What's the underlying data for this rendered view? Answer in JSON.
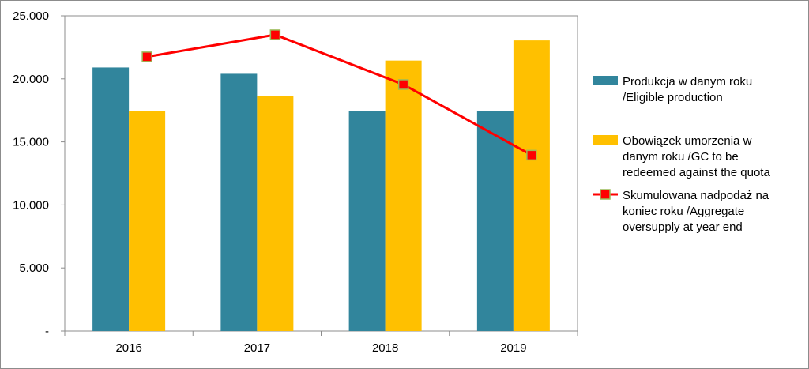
{
  "chart_data": {
    "type": "bar",
    "categories": [
      "2016",
      "2017",
      "2018",
      "2019"
    ],
    "y_tick_labels": [
      "-",
      "5.000",
      "10.000",
      "15.000",
      "20.000",
      "25.000"
    ],
    "ylim": [
      0,
      25000
    ],
    "grid": false,
    "legend_position": "right",
    "series": [
      {
        "name_lines": [
          "Produkcja w danym roku",
          "/Eligible production"
        ],
        "kind": "bar",
        "color": "#31859c",
        "values": [
          20900,
          20400,
          17450,
          17450
        ]
      },
      {
        "name_lines": [
          "Obowiązek umorzenia w",
          "danym roku /GC to be",
          "redeemed against the quota"
        ],
        "kind": "bar",
        "color": "#ffc000",
        "values": [
          17450,
          18650,
          21450,
          23050
        ]
      },
      {
        "name_lines": [
          "Skumulowana nadpodaż na",
          "koniec roku /Aggregate",
          "oversupply at year end"
        ],
        "kind": "line",
        "color": "#ff0000",
        "marker_color": "#ff0000",
        "marker_edge": "#9bbb59",
        "values": [
          21750,
          23500,
          19550,
          13950
        ]
      }
    ]
  }
}
